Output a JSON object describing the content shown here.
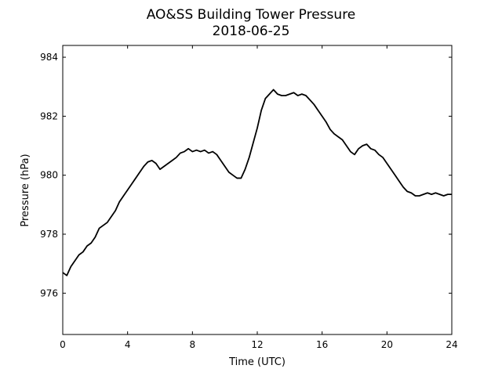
{
  "chart_data": {
    "type": "line",
    "title": "AO&SS Building Tower Pressure",
    "subtitle": "2018-06-25",
    "xlabel": "Time (UTC)",
    "ylabel": "Pressure (hPa)",
    "xlim": [
      0,
      24
    ],
    "ylim": [
      974.6,
      984.4
    ],
    "xticks": [
      0,
      4,
      8,
      12,
      16,
      20,
      24
    ],
    "yticks": [
      976,
      978,
      980,
      982,
      984
    ],
    "grid": false,
    "line_color": "#000000",
    "series": [
      {
        "x": [
          0.0,
          0.25,
          0.5,
          0.75,
          1.0,
          1.25,
          1.5,
          1.75,
          2.0,
          2.25,
          2.5,
          2.75,
          3.0,
          3.25,
          3.5,
          3.75,
          4.0,
          4.25,
          4.5,
          4.75,
          5.0,
          5.25,
          5.5,
          5.75,
          6.0,
          6.25,
          6.5,
          6.75,
          7.0,
          7.25,
          7.5,
          7.75,
          8.0,
          8.25,
          8.5,
          8.75,
          9.0,
          9.25,
          9.5,
          9.75,
          10.0,
          10.25,
          10.5,
          10.75,
          11.0,
          11.25,
          11.5,
          11.75,
          12.0,
          12.25,
          12.5,
          12.75,
          13.0,
          13.25,
          13.5,
          13.75,
          14.0,
          14.25,
          14.5,
          14.75,
          15.0,
          15.25,
          15.5,
          15.75,
          16.0,
          16.25,
          16.5,
          16.75,
          17.0,
          17.25,
          17.5,
          17.75,
          18.0,
          18.25,
          18.5,
          18.75,
          19.0,
          19.25,
          19.5,
          19.75,
          20.0,
          20.25,
          20.5,
          20.75,
          21.0,
          21.25,
          21.5,
          21.75,
          22.0,
          22.25,
          22.5,
          22.75,
          23.0,
          23.25,
          23.5,
          23.75,
          24.0
        ],
        "values": [
          976.7,
          976.6,
          976.9,
          977.1,
          977.3,
          977.4,
          977.6,
          977.7,
          977.9,
          978.2,
          978.3,
          978.4,
          978.6,
          978.8,
          979.1,
          979.3,
          979.5,
          979.7,
          979.9,
          980.1,
          980.3,
          980.45,
          980.5,
          980.4,
          980.2,
          980.3,
          980.4,
          980.5,
          980.6,
          980.75,
          980.8,
          980.9,
          980.8,
          980.85,
          980.8,
          980.85,
          980.75,
          980.8,
          980.7,
          980.5,
          980.3,
          980.1,
          980.0,
          979.9,
          979.9,
          980.2,
          980.6,
          981.1,
          981.6,
          982.2,
          982.6,
          982.75,
          982.9,
          982.75,
          982.7,
          982.7,
          982.75,
          982.8,
          982.7,
          982.75,
          982.7,
          982.55,
          982.4,
          982.2,
          982.0,
          981.8,
          981.55,
          981.4,
          981.3,
          981.2,
          981.0,
          980.8,
          980.7,
          980.9,
          981.0,
          981.05,
          980.9,
          980.85,
          980.7,
          980.6,
          980.4,
          980.2,
          980.0,
          979.8,
          979.6,
          979.45,
          979.4,
          979.3,
          979.3,
          979.35,
          979.4,
          979.35,
          979.4,
          979.35,
          979.3,
          979.35,
          979.35
        ]
      }
    ]
  }
}
